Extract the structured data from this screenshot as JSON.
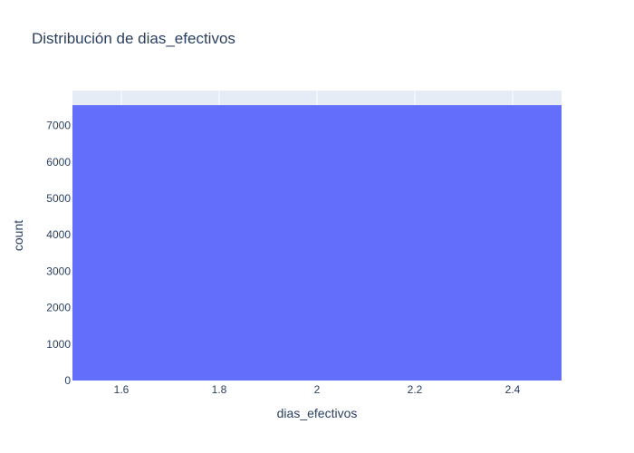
{
  "chart_data": {
    "type": "bar",
    "title": "Distribución de dias_efectivos",
    "xlabel": "dias_efectivos",
    "ylabel": "count",
    "x_ticks": [
      "1.6",
      "1.8",
      "2",
      "2.2",
      "2.4"
    ],
    "x_tick_values": [
      1.6,
      1.8,
      2.0,
      2.2,
      2.4
    ],
    "y_ticks": [
      "0",
      "1000",
      "2000",
      "3000",
      "4000",
      "5000",
      "6000",
      "7000"
    ],
    "y_tick_values": [
      0,
      1000,
      2000,
      3000,
      4000,
      5000,
      6000,
      7000
    ],
    "xlim": [
      1.5,
      2.5
    ],
    "ylim": [
      0,
      7960
    ],
    "bins": [
      {
        "x0": 1.5,
        "x1": 2.5,
        "count": 7560
      }
    ],
    "grid": true,
    "legend": "none",
    "colors": {
      "bar": "#636efa",
      "plot_background": "#e5ecf6",
      "grid": "#ffffff",
      "text": "#2a3f5f"
    }
  }
}
